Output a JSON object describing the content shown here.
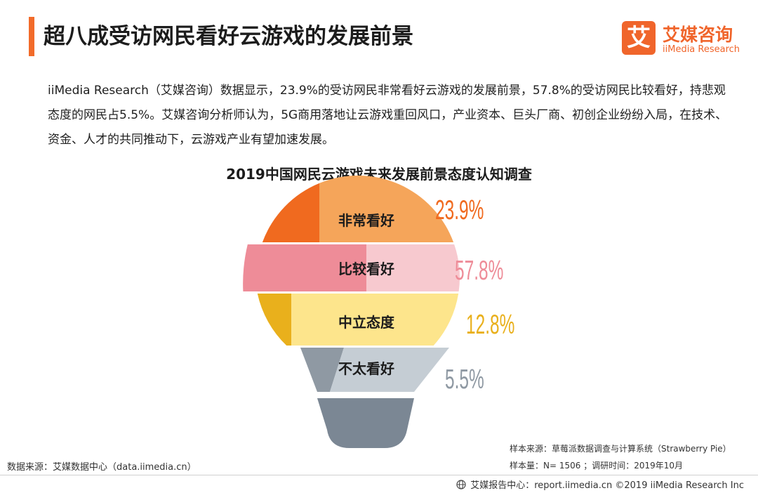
{
  "header": {
    "title": "超八成受访网民看好云游戏的发展前景",
    "accent_color": "#f26b2a"
  },
  "logo": {
    "mark": "艾",
    "name_cn": "艾媒咨询",
    "name_en": "iiMedia Research",
    "color": "#f0652b"
  },
  "summary": {
    "text": "iiMedia Research（艾媒咨询）数据显示，23.9%的受访网民非常看好云游戏的发展前景，57.8%的受访网民比较看好，持悲观态度的网民占5.5%。艾媒咨询分析师认为，5G商用落地让云游戏重回风口，产业资本、巨头厂商、初创企业纷纷入局，在技术、资金、人才的共同推动下，云游戏产业有望加速发展。"
  },
  "chart_data": {
    "type": "bar",
    "title": "2019中国网民云游戏未来发展前景态度认知调查",
    "categories": [
      "非常看好",
      "比较看好",
      "中立态度",
      "不太看好"
    ],
    "values": [
      23.9,
      57.8,
      12.8,
      5.5
    ],
    "value_labels": [
      "23.9%",
      "57.8%",
      "12.8%",
      "5.5%"
    ],
    "unit": "%",
    "colors": {
      "非常看好": {
        "main": "#f5a55a",
        "dark": "#f06a1f",
        "label": "#f06a1f"
      },
      "比较看好": {
        "main": "#f7c9cf",
        "dark": "#ee8c98",
        "label": "#ee8c98"
      },
      "中立态度": {
        "main": "#fde58c",
        "dark": "#e9b01c",
        "label": "#e9b01c"
      },
      "不太看好": {
        "main": "#c5cdd4",
        "dark": "#8f99a3",
        "label": "#8f99a3"
      }
    },
    "base_color": "#7b8794"
  },
  "footer": {
    "data_source": "数据来源：艾媒数据中心（data.iimedia.cn）",
    "sample_source": "样本来源：草莓派数据调查与计算系统（Strawberry Pie）",
    "sample_size": "样本量：N= 1506 ；调研时间：2019年10月",
    "copyright": "艾媒报告中心：report.iimedia.cn ©2019  iiMedia Research  Inc",
    "globe_icon": "globe-icon"
  }
}
